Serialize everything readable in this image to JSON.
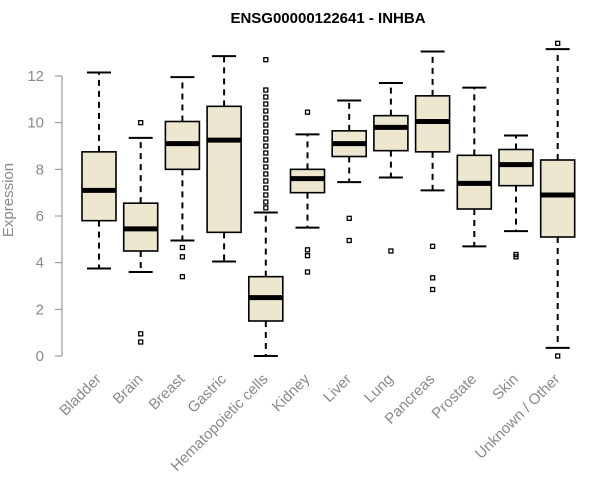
{
  "chart_data": {
    "type": "boxplot",
    "title": "ENSG00000122641 - INHBA",
    "ylabel": "Expression",
    "xlabel": "",
    "ylim": [
      0,
      13.5
    ],
    "yticks": [
      0,
      2,
      4,
      6,
      8,
      10,
      12
    ],
    "categories": [
      "Bladder",
      "Brain",
      "Breast",
      "Gastric",
      "Hematopoietic cells",
      "Kidney",
      "Liver",
      "Lung",
      "Pancreas",
      "Prostate",
      "Skin",
      "Unknown / Other"
    ],
    "boxes": [
      {
        "q1": 5.8,
        "median": 7.1,
        "q3": 8.75,
        "whisker_low": 3.75,
        "whisker_high": 12.15,
        "outliers": []
      },
      {
        "q1": 4.5,
        "median": 5.45,
        "q3": 6.55,
        "whisker_low": 3.6,
        "whisker_high": 9.35,
        "outliers": [
          10.0,
          0.95,
          0.6
        ]
      },
      {
        "q1": 8.0,
        "median": 9.1,
        "q3": 10.05,
        "whisker_low": 4.95,
        "whisker_high": 11.95,
        "outliers": [
          4.65,
          4.25,
          3.4
        ]
      },
      {
        "q1": 5.3,
        "median": 9.25,
        "q3": 10.7,
        "whisker_low": 4.05,
        "whisker_high": 12.85,
        "outliers": []
      },
      {
        "q1": 1.5,
        "median": 2.5,
        "q3": 3.4,
        "whisker_low": 0.0,
        "whisker_high": 6.15,
        "outliers": [
          12.7,
          11.4,
          11.1,
          10.8,
          10.5,
          10.2,
          9.9,
          9.6,
          9.3,
          9.0,
          8.7,
          8.4,
          8.1,
          7.8,
          7.5,
          7.2,
          6.9,
          6.6,
          6.35
        ]
      },
      {
        "q1": 7.0,
        "median": 7.6,
        "q3": 8.0,
        "whisker_low": 5.5,
        "whisker_high": 9.5,
        "outliers": [
          10.45,
          4.55,
          4.3,
          3.6
        ]
      },
      {
        "q1": 8.55,
        "median": 9.1,
        "q3": 9.65,
        "whisker_low": 7.45,
        "whisker_high": 10.95,
        "outliers": [
          5.9,
          4.95
        ]
      },
      {
        "q1": 8.8,
        "median": 9.8,
        "q3": 10.3,
        "whisker_low": 7.65,
        "whisker_high": 11.7,
        "outliers": [
          4.5
        ]
      },
      {
        "q1": 8.75,
        "median": 10.05,
        "q3": 11.15,
        "whisker_low": 7.1,
        "whisker_high": 13.05,
        "outliers": [
          4.7,
          3.35,
          2.85
        ]
      },
      {
        "q1": 6.3,
        "median": 7.4,
        "q3": 8.6,
        "whisker_low": 4.7,
        "whisker_high": 11.5,
        "outliers": []
      },
      {
        "q1": 7.3,
        "median": 8.2,
        "q3": 8.85,
        "whisker_low": 5.35,
        "whisker_high": 9.45,
        "outliers": [
          4.35,
          4.25
        ]
      },
      {
        "q1": 5.1,
        "median": 6.9,
        "q3": 8.4,
        "whisker_low": 0.35,
        "whisker_high": 13.15,
        "outliers": [
          13.4,
          0.0
        ]
      }
    ],
    "box_fill": "#ede7d0",
    "grid": false,
    "legend": "none"
  }
}
